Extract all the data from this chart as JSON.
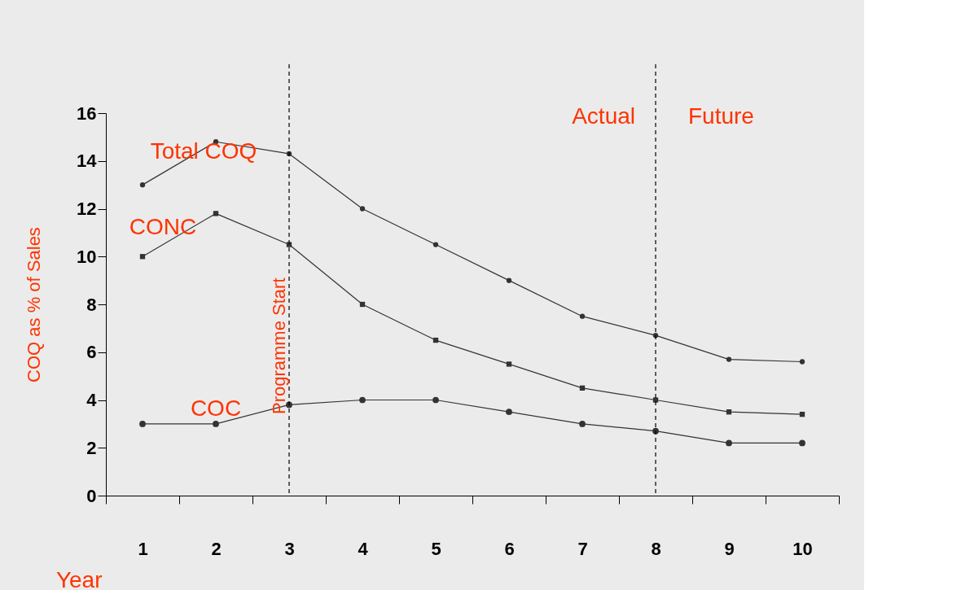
{
  "chart_data": {
    "type": "line",
    "xlabel": "Year",
    "ylabel": "COQ as % of Sales",
    "categories": [
      "1",
      "2",
      "3",
      "4",
      "5",
      "6",
      "7",
      "8",
      "9",
      "10"
    ],
    "series": [
      {
        "name": "Total COQ",
        "color": "#333333",
        "marker": "circle",
        "values": [
          13.0,
          14.8,
          14.3,
          12.0,
          10.5,
          9.0,
          7.5,
          6.7,
          5.7,
          5.6
        ]
      },
      {
        "name": "CONC",
        "color": "#333333",
        "marker": "square",
        "values": [
          10.0,
          11.8,
          10.5,
          8.0,
          6.5,
          5.5,
          4.5,
          4.0,
          3.5,
          3.4
        ]
      },
      {
        "name": "COC",
        "color": "#333333",
        "marker": "circle",
        "values": [
          3.0,
          3.0,
          3.8,
          4.0,
          4.0,
          3.5,
          3.0,
          2.7,
          2.2,
          2.2
        ]
      }
    ],
    "ylim": [
      0,
      16
    ],
    "yticks": [
      0,
      2,
      4,
      6,
      8,
      10,
      12,
      14,
      16
    ],
    "grid": false,
    "ref_lines": [
      {
        "axis": "x",
        "value": "3",
        "label": "Programme Start",
        "line_style": "dashed"
      },
      {
        "axis": "x",
        "value": "8",
        "label": null,
        "line_style": "dashed"
      }
    ],
    "annotations": [
      "Actual",
      "Future"
    ]
  }
}
